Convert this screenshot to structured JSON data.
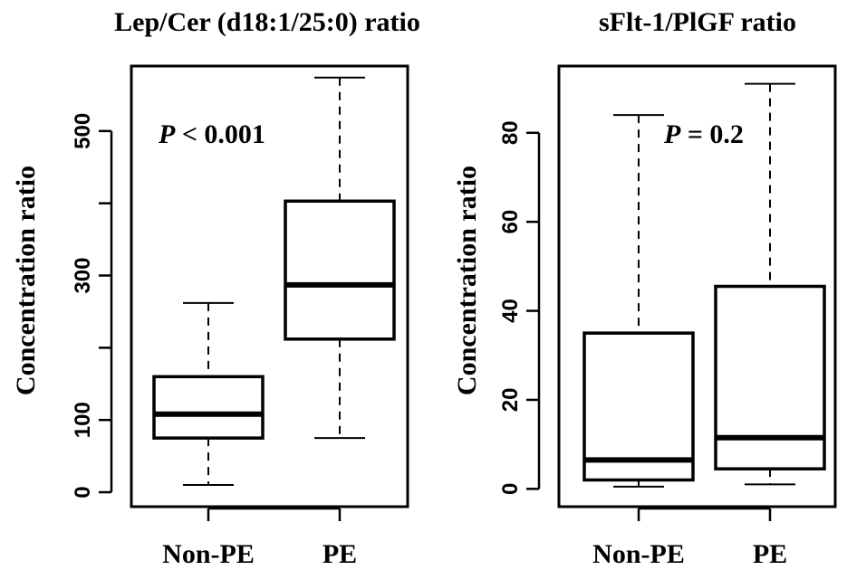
{
  "chart_data": [
    {
      "type": "box",
      "title": "Lep/Cer (d18:1/25:0) ratio",
      "ylabel": "Concentration ratio",
      "ylim": [
        -20,
        590
      ],
      "yticks": [
        0,
        100,
        300,
        500
      ],
      "yticks_minor": [
        200,
        400
      ],
      "categories": [
        "Non-PE",
        "PE"
      ],
      "boxes": [
        {
          "min": 10,
          "q1": 75,
          "median": 108,
          "q3": 160,
          "max": 262
        },
        {
          "min": 75,
          "q1": 212,
          "median": 287,
          "q3": 403,
          "max": 574
        }
      ],
      "annotation": {
        "p_symbol": "P",
        "p_text": " < 0.001"
      }
    },
    {
      "type": "box",
      "title": "sFlt-1/PlGF ratio",
      "ylabel": "Concentration ratio",
      "ylim": [
        -4,
        95
      ],
      "yticks": [
        0,
        20,
        40,
        60,
        80
      ],
      "categories": [
        "Non-PE",
        "PE"
      ],
      "boxes": [
        {
          "min": 0.5,
          "q1": 2,
          "median": 6.5,
          "q3": 35,
          "max": 84
        },
        {
          "min": 1,
          "q1": 4.5,
          "median": 11.5,
          "q3": 45.5,
          "max": 91
        }
      ],
      "annotation": {
        "p_symbol": "P",
        "p_text": " = 0.2"
      }
    }
  ]
}
